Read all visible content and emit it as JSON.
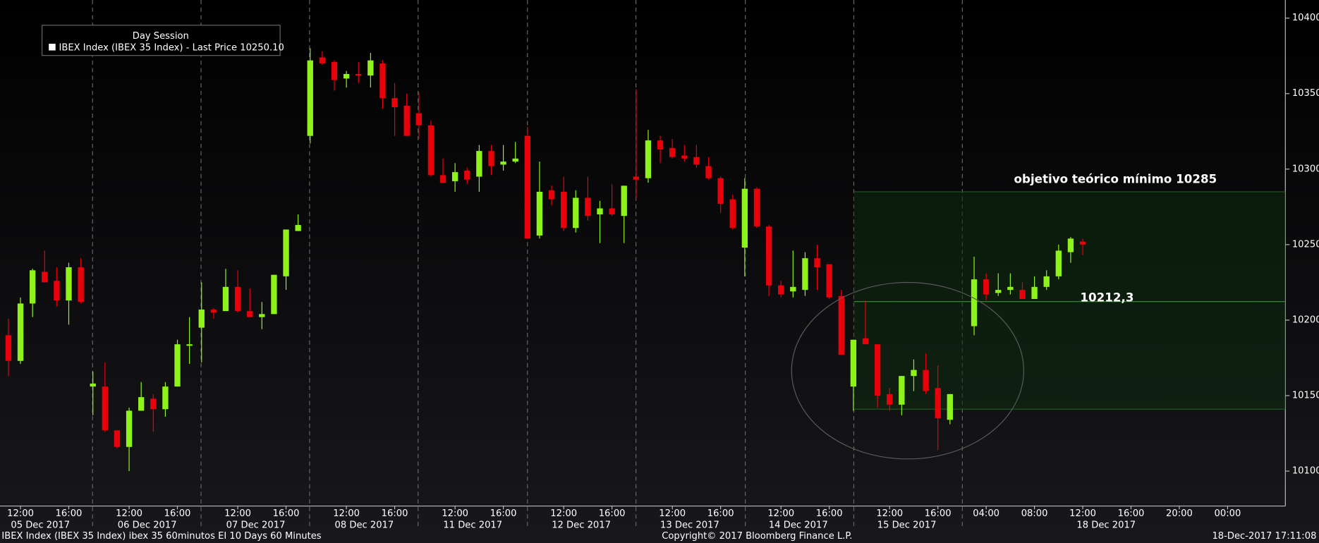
{
  "chart_data": {
    "type": "candlestick",
    "legend_title": "Day Session",
    "legend_position": "upper left",
    "series": [
      {
        "name": "IBEX Index (IBEX 35 Index) - Last Price 10250.10",
        "up_color": "#8ef31a",
        "down_color": "#e8000b",
        "open": [
          10190,
          10173,
          10211,
          10232,
          10226,
          10213,
          10235,
          10156,
          10156,
          10127,
          10116,
          10140,
          10148,
          10141,
          10156,
          10183,
          10195,
          10207,
          10206,
          10222,
          10206,
          10202,
          10204,
          10229,
          10259,
          10322,
          10374,
          10371,
          10360,
          10363,
          10362,
          10370,
          10347,
          10342,
          10337,
          10329,
          10296,
          10292,
          10299,
          10295,
          10312,
          10303,
          10305,
          10322,
          10256,
          10286,
          10285,
          10261,
          10281,
          10270,
          10274,
          10269,
          10295,
          10294,
          10319,
          10314,
          10309,
          10308,
          10302,
          10294,
          10280,
          10248,
          10287,
          10262,
          10223,
          10219,
          10220,
          10241,
          10237,
          10216,
          10156,
          10188,
          10184,
          10151,
          10144,
          10163,
          10167,
          10155,
          10134,
          10196,
          10227,
          10218,
          10220,
          10220,
          10214,
          10222,
          10229,
          10245,
          10252
        ],
        "high": [
          10201,
          10215,
          10234,
          10246,
          10235,
          10238,
          10241,
          10166,
          10172,
          10127,
          10142,
          10159,
          10151,
          10159,
          10187,
          10202,
          10225,
          10208,
          10234,
          10233,
          10221,
          10212,
          10230,
          10260,
          10270,
          10380,
          10378,
          10372,
          10365,
          10371,
          10377,
          10372,
          10357,
          10350,
          10351,
          10332,
          10307,
          10304,
          10301,
          10316,
          10316,
          10316,
          10318,
          10328,
          10305,
          10289,
          10295,
          10286,
          10295,
          10279,
          10290,
          10289,
          10353,
          10326,
          10322,
          10320,
          10316,
          10316,
          10308,
          10295,
          10283,
          10294,
          10288,
          10263,
          10226,
          10246,
          10245,
          10250,
          10237,
          10220,
          10187,
          10213,
          10184,
          10155,
          10163,
          10174,
          10178,
          10170,
          10151,
          10242,
          10231,
          10231,
          10231,
          10225,
          10229,
          10233,
          10250,
          10255,
          10254
        ],
        "low": [
          10163,
          10171,
          10202,
          10225,
          10209,
          10197,
          10211,
          10137,
          10126,
          10115,
          10100,
          10140,
          10126,
          10136,
          10156,
          10171,
          10172,
          10201,
          10206,
          10205,
          10202,
          10194,
          10204,
          10220,
          10259,
          10317,
          10369,
          10352,
          10354,
          10357,
          10354,
          10340,
          10322,
          10322,
          10320,
          10295,
          10291,
          10285,
          10290,
          10285,
          10296,
          10299,
          10304,
          10254,
          10254,
          10276,
          10259,
          10258,
          10266,
          10251,
          10269,
          10251,
          10280,
          10291,
          10304,
          10307,
          10305,
          10301,
          10293,
          10271,
          10260,
          10229,
          10261,
          10216,
          10215,
          10215,
          10216,
          10220,
          10214,
          10177,
          10140,
          10184,
          10142,
          10140,
          10137,
          10153,
          10151,
          10114,
          10131,
          10190,
          10213,
          10216,
          10217,
          10214,
          10214,
          10220,
          10227,
          10238,
          10243
        ],
        "close": [
          10173,
          10211,
          10233,
          10225,
          10213,
          10235,
          10212,
          10158,
          10127,
          10116,
          10140,
          10149,
          10141,
          10156,
          10184,
          10184,
          10207,
          10205,
          10222,
          10206,
          10202,
          10204,
          10230,
          10260,
          10263,
          10372,
          10370,
          10359,
          10363,
          10362,
          10372,
          10347,
          10341,
          10322,
          10329,
          10296,
          10291,
          10298,
          10293,
          10312,
          10302,
          10305,
          10307,
          10254,
          10285,
          10280,
          10261,
          10281,
          10269,
          10274,
          10270,
          10289,
          10293,
          10319,
          10313,
          10308,
          10307,
          10303,
          10294,
          10277,
          10261,
          10287,
          10262,
          10223,
          10217,
          10222,
          10241,
          10235,
          10215,
          10177,
          10187,
          10184,
          10150,
          10144,
          10163,
          10167,
          10153,
          10135,
          10151,
          10227,
          10217,
          10220,
          10222,
          10214,
          10222,
          10229,
          10246,
          10254,
          10250
        ]
      }
    ],
    "ylim": [
      10078,
      10412
    ],
    "yticks": [
      10100,
      10150,
      10200,
      10250,
      10300,
      10350,
      10400
    ],
    "x_time_labels": [
      "12:00",
      "16:00",
      "12:00",
      "16:00",
      "12:00",
      "16:00",
      "12:00",
      "16:00",
      "12:00",
      "16:00",
      "12:00",
      "16:00",
      "12:00",
      "16:00",
      "12:00",
      "16:00",
      "12:00",
      "16:00",
      "04:00",
      "08:00",
      "12:00",
      "16:00",
      "20:00",
      "00:00"
    ],
    "x_date_labels": [
      "05 Dec 2017",
      "06 Dec 2017",
      "07 Dec 2017",
      "08 Dec 2017",
      "11 Dec 2017",
      "12 Dec 2017",
      "13 Dec 2017",
      "14 Dec 2017",
      "15 Dec 2017",
      "18 Dec 2017"
    ],
    "annotations": {
      "target_text": "objetivo teórico mínimo 10285",
      "target_value": 10285,
      "level_label": "10212,3",
      "level_value": 10212.3,
      "base_value": 10141
    },
    "footer": {
      "left": "IBEX Index (IBEX 35 Index) ibex 35 60minutos EI 10 Days 60 Minutes",
      "center": "Copyright© 2017 Bloomberg Finance L.P.",
      "right": "18-Dec-2017 17:11:08"
    }
  }
}
